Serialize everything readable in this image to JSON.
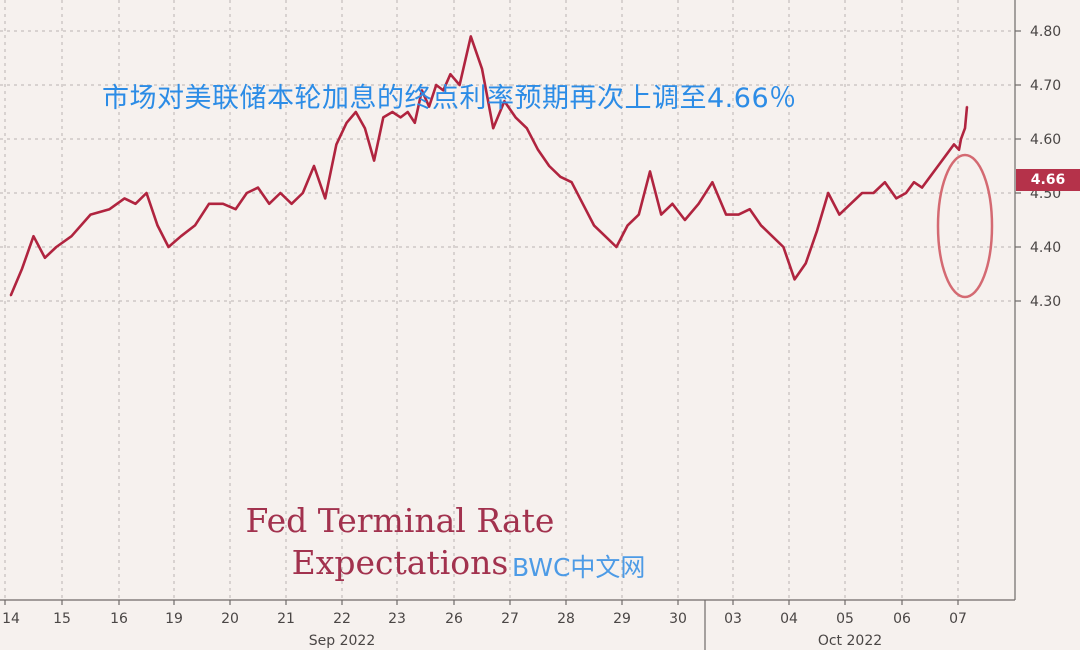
{
  "chart_data": {
    "type": "line",
    "title": "Fed Terminal Rate Expectations",
    "annotation_cn": "市场对美联储本轮加息的终点利率预期再次上调至4.66％",
    "watermark": "BWC中文网",
    "last_value_label": "4.66",
    "colors": {
      "line": "#b0243f",
      "circle": "#d46a72",
      "tag": "#b5324a",
      "background": "#f6f1ee"
    },
    "x_tick_labels": [
      "14",
      "15",
      "16",
      "19",
      "20",
      "21",
      "22",
      "23",
      "26",
      "27",
      "28",
      "29",
      "30",
      "03",
      "04",
      "05",
      "06",
      "07"
    ],
    "month_labels": [
      "Sep 2022",
      "Oct 2022"
    ],
    "y_tick_labels": [
      "4.30",
      "4.40",
      "4.50",
      "4.60",
      "4.70",
      "4.80"
    ],
    "ylim": [
      4.27,
      4.83
    ],
    "grid": true,
    "series": [
      {
        "points": [
          [
            "14",
            4.31
          ],
          [
            "14",
            4.36
          ],
          [
            "14",
            4.42
          ],
          [
            "14",
            4.38
          ],
          [
            "14",
            4.4
          ],
          [
            "15",
            4.42
          ],
          [
            "15",
            4.46
          ],
          [
            "15",
            4.47
          ],
          [
            "16",
            4.49
          ],
          [
            "16",
            4.48
          ],
          [
            "16",
            4.5
          ],
          [
            "16",
            4.44
          ],
          [
            "16",
            4.4
          ],
          [
            "19",
            4.42
          ],
          [
            "19",
            4.44
          ],
          [
            "19",
            4.48
          ],
          [
            "19",
            4.48
          ],
          [
            "20",
            4.47
          ],
          [
            "20",
            4.5
          ],
          [
            "20",
            4.51
          ],
          [
            "20",
            4.48
          ],
          [
            "20",
            4.5
          ],
          [
            "21",
            4.48
          ],
          [
            "21",
            4.5
          ],
          [
            "21",
            4.55
          ],
          [
            "21",
            4.49
          ],
          [
            "21",
            4.59
          ],
          [
            "22",
            4.63
          ],
          [
            "22",
            4.65
          ],
          [
            "22",
            4.62
          ],
          [
            "22",
            4.56
          ],
          [
            "22",
            4.64
          ],
          [
            "22",
            4.65
          ],
          [
            "23",
            4.64
          ],
          [
            "23",
            4.65
          ],
          [
            "23",
            4.63
          ],
          [
            "23",
            4.69
          ],
          [
            "23",
            4.66
          ],
          [
            "23",
            4.7
          ],
          [
            "23",
            4.69
          ],
          [
            "23",
            4.72
          ],
          [
            "26",
            4.7
          ],
          [
            "26",
            4.79
          ],
          [
            "26",
            4.73
          ],
          [
            "26",
            4.62
          ],
          [
            "26",
            4.67
          ],
          [
            "27",
            4.64
          ],
          [
            "27",
            4.62
          ],
          [
            "27",
            4.58
          ],
          [
            "27",
            4.55
          ],
          [
            "27",
            4.53
          ],
          [
            "28",
            4.52
          ],
          [
            "28",
            4.48
          ],
          [
            "28",
            4.44
          ],
          [
            "28",
            4.42
          ],
          [
            "28",
            4.4
          ],
          [
            "29",
            4.44
          ],
          [
            "29",
            4.46
          ],
          [
            "29",
            4.54
          ],
          [
            "29",
            4.46
          ],
          [
            "29",
            4.48
          ],
          [
            "30",
            4.45
          ],
          [
            "30",
            4.48
          ],
          [
            "30",
            4.52
          ],
          [
            "30",
            4.46
          ],
          [
            "03",
            4.46
          ],
          [
            "03",
            4.47
          ],
          [
            "03",
            4.44
          ],
          [
            "03",
            4.42
          ],
          [
            "03",
            4.4
          ],
          [
            "04",
            4.34
          ],
          [
            "04",
            4.37
          ],
          [
            "04",
            4.43
          ],
          [
            "04",
            4.5
          ],
          [
            "04",
            4.46
          ],
          [
            "05",
            4.48
          ],
          [
            "05",
            4.5
          ],
          [
            "05",
            4.5
          ],
          [
            "05",
            4.52
          ],
          [
            "05",
            4.49
          ],
          [
            "06",
            4.5
          ],
          [
            "06",
            4.52
          ],
          [
            "06",
            4.51
          ],
          [
            "06",
            4.53
          ],
          [
            "06",
            4.55
          ],
          [
            "06",
            4.57
          ],
          [
            "06",
            4.59
          ],
          [
            "07",
            4.58
          ],
          [
            "07",
            4.6
          ],
          [
            "07",
            4.61
          ],
          [
            "07",
            4.62
          ],
          [
            "07",
            4.66
          ]
        ]
      }
    ]
  }
}
